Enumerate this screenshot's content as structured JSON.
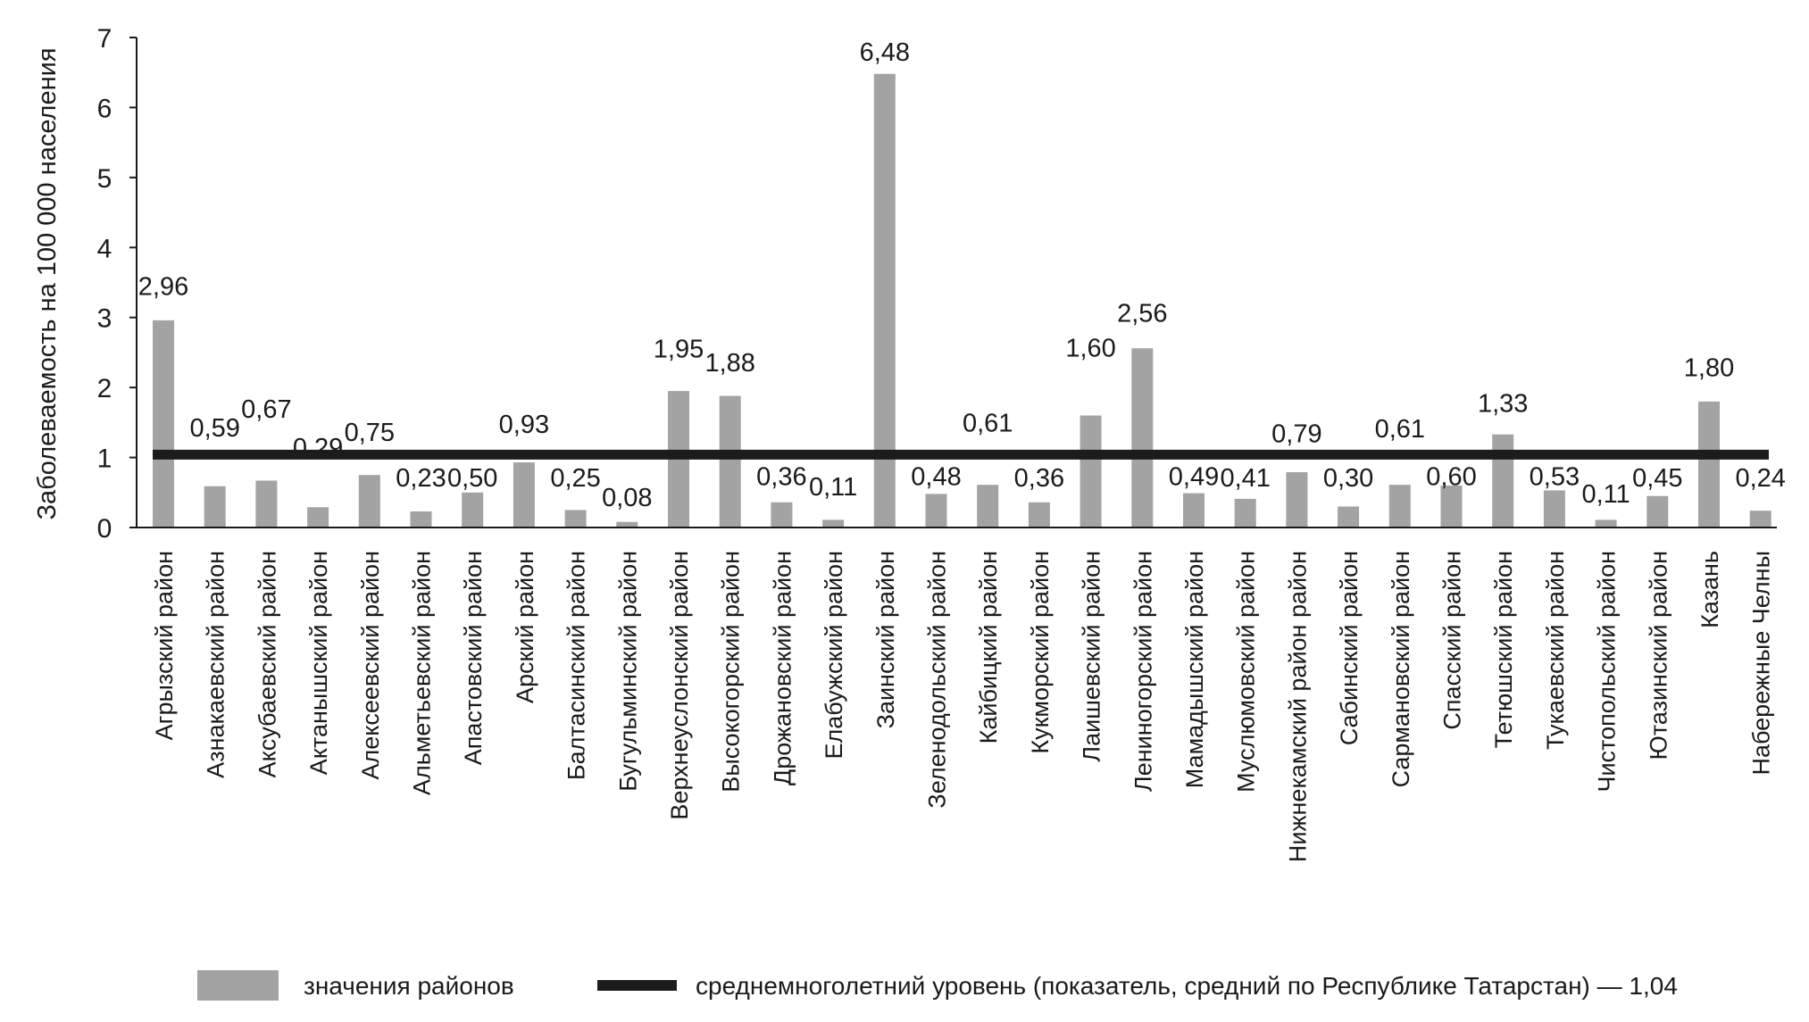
{
  "chart_data": {
    "type": "bar",
    "title": "",
    "xlabel": "",
    "ylabel": "Заболеваемость на 100 000 населения",
    "ylim": [
      0,
      7
    ],
    "yticks": [
      "0",
      "1",
      "2",
      "3",
      "4",
      "5",
      "6",
      "7"
    ],
    "grid": false,
    "categories": [
      "Агрызский район",
      "Азнакаевский район",
      "Аксубаевский район",
      "Актанышский район",
      "Алексеевский район",
      "Альметьевский район",
      "Апастовский район",
      "Арский район",
      "Балтасинский район",
      "Бугульминский район",
      "Верхнеуслонский район",
      "Высокогорский район",
      "Дрожановский район",
      "Елабужский район",
      "Заинский район",
      "Зеленодольский район",
      "Кайбицкий район",
      "Кукморский район",
      "Лаишевский район",
      "Лениногорский район",
      "Мамадышский район",
      "Муслюмовский район",
      "Нижнекамский район район",
      "Сабинский район",
      "Сармановский район",
      "Спасский район",
      "Тетюшский район",
      "Тукаевский район",
      "Чистопольский район",
      "Ютазинский район",
      "Казань",
      "Набережные Челны"
    ],
    "values": [
      2.96,
      0.59,
      0.67,
      0.29,
      0.75,
      0.23,
      0.5,
      0.93,
      0.25,
      0.08,
      1.95,
      1.88,
      0.36,
      0.11,
      6.48,
      0.48,
      0.61,
      0.36,
      1.6,
      2.56,
      0.49,
      0.41,
      0.79,
      0.3,
      0.61,
      0.6,
      1.33,
      0.53,
      0.11,
      0.45,
      1.8,
      0.24
    ],
    "value_labels": [
      "2,96",
      "0,59",
      "0,67",
      "0,29",
      "0,75",
      "0,23",
      "0,50",
      "0,93",
      "0,25",
      "0,08",
      "1,95",
      "1,88",
      "0,36",
      "0,11",
      "6,48",
      "0,48",
      "0,61",
      "0,36",
      "1,60",
      "2,56",
      "0,49",
      "0,41",
      "0,79",
      "0,30",
      "0,61",
      "0,60",
      "1,33",
      "0,53",
      "0,11",
      "0,45",
      "1,80",
      "0,24"
    ],
    "reference_line": {
      "value": 1.04,
      "label": "среднемноголетний уровень (показатель, средний по Республике Татарстан) — 1,04"
    },
    "legend": {
      "placement": "bottom",
      "entries": [
        "значения районов",
        "среднемноголетний уровень (показатель, средний по Республике Татарстан) — 1,04"
      ]
    },
    "colors": {
      "bar": "#a3a3a3",
      "line": "#1c1c1c",
      "text": "#1a1a1a"
    }
  }
}
